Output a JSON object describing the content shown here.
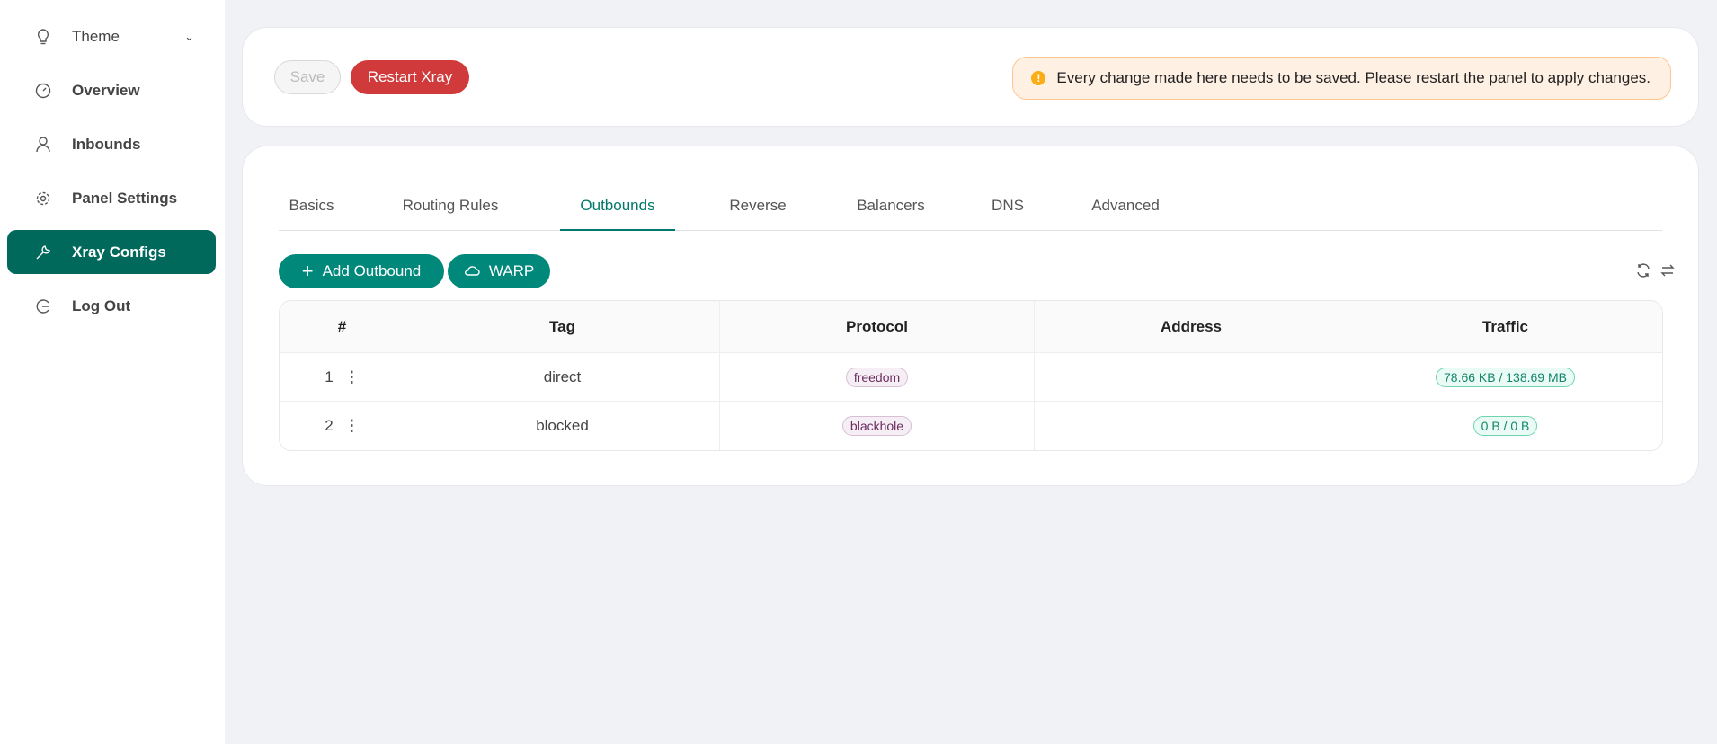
{
  "sidebar": {
    "items": [
      {
        "label": "Theme",
        "icon": "bulb-icon"
      },
      {
        "label": "Overview",
        "icon": "dashboard-icon"
      },
      {
        "label": "Inbounds",
        "icon": "user-icon"
      },
      {
        "label": "Panel Settings",
        "icon": "gear-icon"
      },
      {
        "label": "Xray Configs",
        "icon": "wrench-icon",
        "active": true
      },
      {
        "label": "Log Out",
        "icon": "logout-icon"
      }
    ]
  },
  "toolbar": {
    "save_label": "Save",
    "restart_label": "Restart Xray",
    "alert": "Every change made here needs to be saved. Please restart the panel to apply changes."
  },
  "tabs": [
    "Basics",
    "Routing Rules",
    "Outbounds",
    "Reverse",
    "Balancers",
    "DNS",
    "Advanced"
  ],
  "active_tab": "Outbounds",
  "actions": {
    "add_label": "Add Outbound",
    "warp_label": "WARP"
  },
  "table": {
    "headers": [
      "#",
      "Tag",
      "Protocol",
      "Address",
      "Traffic"
    ],
    "rows": [
      {
        "index": "1",
        "tag": "direct",
        "protocol": "freedom",
        "address": "",
        "traffic": "78.66 KB / 138.69 MB"
      },
      {
        "index": "2",
        "tag": "blocked",
        "protocol": "blackhole",
        "address": "",
        "traffic": "0 B / 0 B"
      }
    ]
  },
  "colors": {
    "accent": "#00796b",
    "danger": "#d13a3a",
    "sidebar_active": "#00695c"
  }
}
